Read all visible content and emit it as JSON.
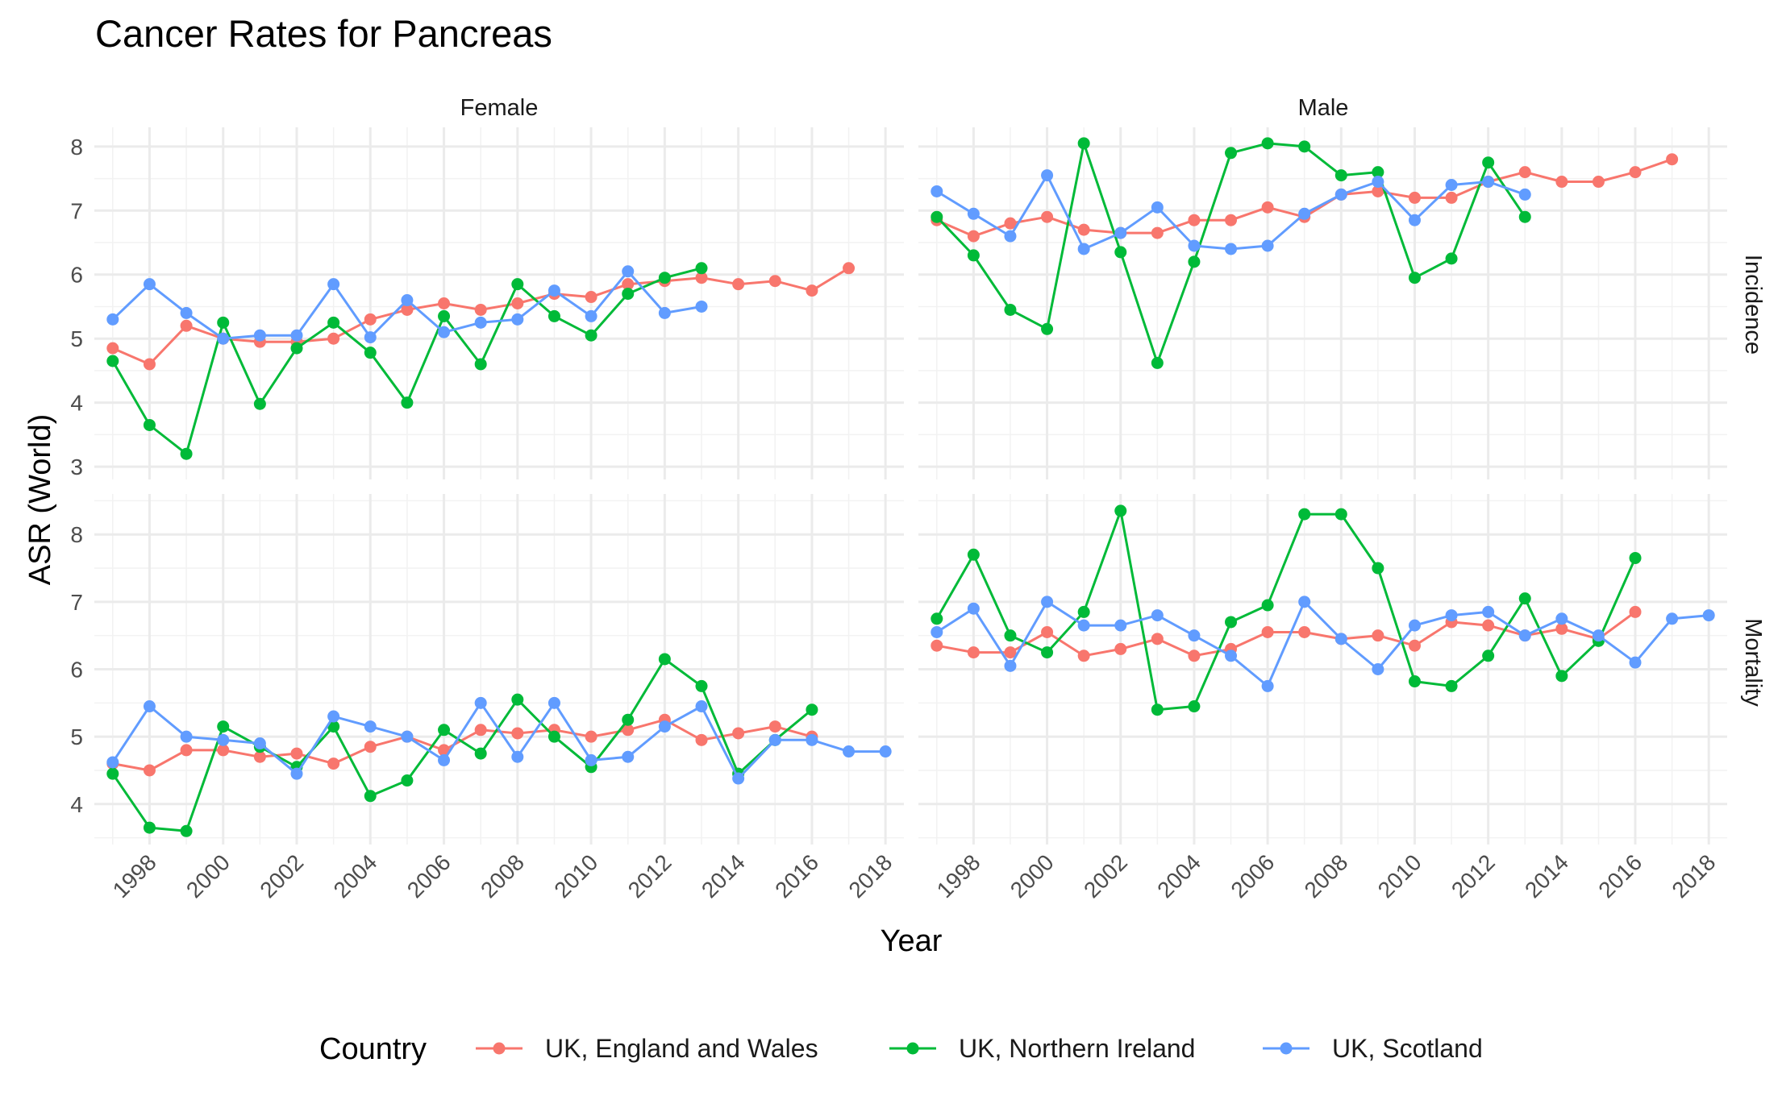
{
  "chart_data": {
    "type": "line",
    "title": "Cancer Rates for Pancreas",
    "xlabel": "Year",
    "ylabel": "ASR (World)",
    "x_ticks": [
      1998,
      2000,
      2002,
      2004,
      2006,
      2008,
      2010,
      2012,
      2014,
      2016,
      2018
    ],
    "xlim": [
      1996.5,
      2018.5
    ],
    "grid": true,
    "legend_position": "bottom",
    "legend_title": "Country",
    "series_info": [
      {
        "name": "UK, England and Wales",
        "color": "#F8766D"
      },
      {
        "name": "UK, Northern Ireland",
        "color": "#00BA38"
      },
      {
        "name": "UK, Scotland",
        "color": "#619CFF"
      }
    ],
    "panels": [
      {
        "sex": "Female",
        "measure": "Incidence",
        "ylim": [
          2.8,
          8.3
        ],
        "y_ticks": [
          3,
          4,
          5,
          6,
          7,
          8
        ],
        "series": [
          {
            "name": "UK, England and Wales",
            "x": [
              1997,
              1998,
              1999,
              2000,
              2001,
              2002,
              2003,
              2004,
              2005,
              2006,
              2007,
              2008,
              2009,
              2010,
              2011,
              2012,
              2013,
              2014,
              2015,
              2016,
              2017
            ],
            "y": [
              4.85,
              4.6,
              5.2,
              5.0,
              4.95,
              4.95,
              5.0,
              5.3,
              5.45,
              5.55,
              5.45,
              5.55,
              5.7,
              5.65,
              5.85,
              5.9,
              5.95,
              5.85,
              5.9,
              5.75,
              6.1
            ]
          },
          {
            "name": "UK, Northern Ireland",
            "x": [
              1997,
              1998,
              1999,
              2000,
              2001,
              2002,
              2003,
              2004,
              2005,
              2006,
              2007,
              2008,
              2009,
              2010,
              2011,
              2012,
              2013
            ],
            "y": [
              4.65,
              3.65,
              3.2,
              5.25,
              3.98,
              4.85,
              5.25,
              4.78,
              4.0,
              5.35,
              4.6,
              5.85,
              5.35,
              5.05,
              5.7,
              5.95,
              6.1
            ]
          },
          {
            "name": "UK, Scotland",
            "x": [
              1997,
              1998,
              1999,
              2000,
              2001,
              2002,
              2003,
              2004,
              2005,
              2006,
              2007,
              2008,
              2009,
              2010,
              2011,
              2012,
              2013
            ],
            "y": [
              5.3,
              5.85,
              5.4,
              5.0,
              5.05,
              5.05,
              5.85,
              5.02,
              5.6,
              5.1,
              5.25,
              5.3,
              5.75,
              5.35,
              6.05,
              5.4,
              5.5
            ]
          }
        ]
      },
      {
        "sex": "Male",
        "measure": "Incidence",
        "ylim": [
          2.8,
          8.3
        ],
        "y_ticks": [
          3,
          4,
          5,
          6,
          7,
          8
        ],
        "series": [
          {
            "name": "UK, England and Wales",
            "x": [
              1997,
              1998,
              1999,
              2000,
              2001,
              2002,
              2003,
              2004,
              2005,
              2006,
              2007,
              2008,
              2009,
              2010,
              2011,
              2012,
              2013,
              2014,
              2015,
              2016,
              2017
            ],
            "y": [
              6.85,
              6.6,
              6.8,
              6.9,
              6.7,
              6.65,
              6.65,
              6.85,
              6.85,
              7.05,
              6.9,
              7.25,
              7.3,
              7.2,
              7.2,
              7.45,
              7.6,
              7.45,
              7.45,
              7.6,
              7.8
            ]
          },
          {
            "name": "UK, Northern Ireland",
            "x": [
              1997,
              1998,
              1999,
              2000,
              2001,
              2002,
              2003,
              2004,
              2005,
              2006,
              2007,
              2008,
              2009,
              2010,
              2011,
              2012,
              2013
            ],
            "y": [
              6.9,
              6.3,
              5.45,
              5.15,
              8.05,
              6.35,
              4.62,
              6.2,
              7.9,
              8.05,
              8.0,
              7.55,
              7.6,
              5.95,
              6.25,
              7.75,
              6.9
            ]
          },
          {
            "name": "UK, Scotland",
            "x": [
              1997,
              1998,
              1999,
              2000,
              2001,
              2002,
              2003,
              2004,
              2005,
              2006,
              2007,
              2008,
              2009,
              2010,
              2011,
              2012,
              2013
            ],
            "y": [
              7.3,
              6.95,
              6.6,
              7.55,
              6.4,
              6.65,
              7.05,
              6.45,
              6.4,
              6.45,
              6.95,
              7.25,
              7.45,
              6.85,
              7.4,
              7.45,
              7.25
            ]
          }
        ]
      },
      {
        "sex": "Female",
        "measure": "Mortality",
        "ylim": [
          3.4,
          8.6
        ],
        "y_ticks": [
          4,
          5,
          6,
          7,
          8
        ],
        "series": [
          {
            "name": "UK, England and Wales",
            "x": [
              1997,
              1998,
              1999,
              2000,
              2001,
              2002,
              2003,
              2004,
              2005,
              2006,
              2007,
              2008,
              2009,
              2010,
              2011,
              2012,
              2013,
              2014,
              2015,
              2016
            ],
            "y": [
              4.6,
              4.5,
              4.8,
              4.8,
              4.7,
              4.75,
              4.6,
              4.85,
              5.0,
              4.8,
              5.1,
              5.05,
              5.1,
              5.0,
              5.1,
              5.25,
              4.95,
              5.05,
              5.15,
              5.0
            ]
          },
          {
            "name": "UK, Northern Ireland",
            "x": [
              1997,
              1998,
              1999,
              2000,
              2001,
              2002,
              2003,
              2004,
              2005,
              2006,
              2007,
              2008,
              2009,
              2010,
              2011,
              2012,
              2013,
              2014,
              2015,
              2016
            ],
            "y": [
              4.45,
              3.65,
              3.6,
              5.15,
              4.85,
              4.55,
              5.15,
              4.12,
              4.35,
              5.1,
              4.75,
              5.55,
              5.0,
              4.55,
              5.25,
              6.15,
              5.75,
              4.45,
              4.95,
              5.4
            ]
          },
          {
            "name": "UK, Scotland",
            "x": [
              1997,
              1998,
              1999,
              2000,
              2001,
              2002,
              2003,
              2004,
              2005,
              2006,
              2007,
              2008,
              2009,
              2010,
              2011,
              2012,
              2013,
              2014,
              2015,
              2016,
              2017,
              2018
            ],
            "y": [
              4.62,
              5.45,
              5.0,
              4.95,
              4.9,
              4.45,
              5.3,
              5.15,
              5.0,
              4.65,
              5.5,
              4.7,
              5.5,
              4.65,
              4.7,
              5.15,
              5.45,
              4.38,
              4.95,
              4.95,
              4.78,
              4.78
            ]
          }
        ]
      },
      {
        "sex": "Male",
        "measure": "Mortality",
        "ylim": [
          3.4,
          8.6
        ],
        "y_ticks": [
          4,
          5,
          6,
          7,
          8
        ],
        "series": [
          {
            "name": "UK, England and Wales",
            "x": [
              1997,
              1998,
              1999,
              2000,
              2001,
              2002,
              2003,
              2004,
              2005,
              2006,
              2007,
              2008,
              2009,
              2010,
              2011,
              2012,
              2013,
              2014,
              2015,
              2016
            ],
            "y": [
              6.35,
              6.25,
              6.25,
              6.55,
              6.2,
              6.3,
              6.45,
              6.2,
              6.3,
              6.55,
              6.55,
              6.45,
              6.5,
              6.35,
              6.7,
              6.65,
              6.5,
              6.6,
              6.45,
              6.85
            ]
          },
          {
            "name": "UK, Northern Ireland",
            "x": [
              1997,
              1998,
              1999,
              2000,
              2001,
              2002,
              2003,
              2004,
              2005,
              2006,
              2007,
              2008,
              2009,
              2010,
              2011,
              2012,
              2013,
              2014,
              2015,
              2016
            ],
            "y": [
              6.75,
              7.7,
              6.5,
              6.25,
              6.85,
              8.35,
              5.4,
              5.45,
              6.7,
              6.95,
              8.3,
              8.3,
              7.5,
              5.82,
              5.75,
              6.2,
              7.05,
              5.9,
              6.42,
              7.65
            ]
          },
          {
            "name": "UK, Scotland",
            "x": [
              1997,
              1998,
              1999,
              2000,
              2001,
              2002,
              2003,
              2004,
              2005,
              2006,
              2007,
              2008,
              2009,
              2010,
              2011,
              2012,
              2013,
              2014,
              2015,
              2016,
              2017,
              2018
            ],
            "y": [
              6.55,
              6.9,
              6.05,
              7.0,
              6.65,
              6.65,
              6.8,
              6.5,
              6.2,
              5.75,
              7.0,
              6.45,
              6.0,
              6.65,
              6.8,
              6.85,
              6.5,
              6.75,
              6.5,
              6.1,
              6.75,
              6.8
            ]
          }
        ]
      }
    ]
  }
}
